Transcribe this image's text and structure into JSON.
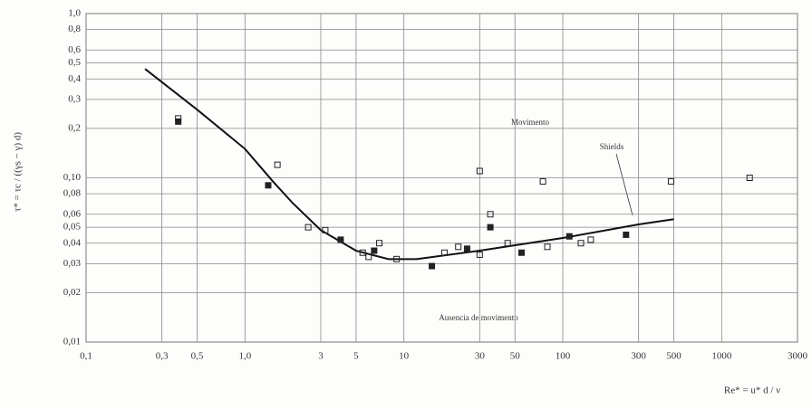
{
  "chart_data": {
    "type": "line",
    "y_label": "τ* = τc / ((γs − γ) d)",
    "x_label": "Re* = u* d / ν",
    "annotations": [
      "Movimento",
      "Ausencia de movimento",
      "Shields"
    ],
    "log_x": true,
    "log_y": true,
    "grid": true,
    "xlim": [
      0.1,
      3000
    ],
    "ylim": [
      0.01,
      1.0
    ],
    "xticks": [
      {
        "value": 0.1,
        "label": "0,1"
      },
      {
        "value": 0.3,
        "label": "0,3"
      },
      {
        "value": 0.5,
        "label": "0,5"
      },
      {
        "value": 1.0,
        "label": "1,0"
      },
      3,
      5,
      10,
      30,
      50,
      100,
      300,
      500,
      1000,
      3000
    ],
    "yticks": [
      {
        "value": 1.0,
        "label": "1,0"
      },
      {
        "value": 0.8,
        "label": "0,8"
      },
      {
        "value": 0.6,
        "label": "0,6"
      },
      {
        "value": 0.5,
        "label": "0,5"
      },
      {
        "value": 0.4,
        "label": "0,4"
      },
      {
        "value": 0.3,
        "label": "0,3"
      },
      {
        "value": 0.2,
        "label": "0,2"
      },
      {
        "value": 0.1,
        "label": "0,10"
      },
      {
        "value": 0.08,
        "label": "0,08"
      },
      {
        "value": 0.06,
        "label": "0,06"
      },
      {
        "value": 0.05,
        "label": "0,05"
      },
      {
        "value": 0.04,
        "label": "0,04"
      },
      {
        "value": 0.03,
        "label": "0,03"
      },
      {
        "value": 0.02,
        "label": "0,02"
      },
      {
        "value": 0.01,
        "label": "0,01"
      }
    ],
    "color": "#111111",
    "x": [
      0.235,
      0.5,
      1,
      1.5,
      2,
      3,
      5,
      8,
      12,
      30,
      100,
      300,
      500
    ],
    "values": [
      0.46,
      0.26,
      0.15,
      0.095,
      0.07,
      0.048,
      0.036,
      0.032,
      0.032,
      0.036,
      0.043,
      0.052,
      0.056
    ],
    "markers": {
      "color": "#222222",
      "x": [
        0.38,
        0.38,
        1.6,
        1.4,
        2.5,
        3.2,
        4,
        5.5,
        6,
        6.5,
        7,
        9,
        15,
        18,
        22,
        25,
        30,
        30,
        35,
        35,
        45,
        55,
        75,
        80,
        110,
        130,
        150,
        250,
        480,
        1500
      ],
      "values": [
        0.22,
        0.23,
        0.12,
        0.09,
        0.05,
        0.048,
        0.042,
        0.035,
        0.033,
        0.036,
        0.04,
        0.032,
        0.029,
        0.035,
        0.038,
        0.037,
        0.034,
        0.11,
        0.05,
        0.06,
        0.04,
        0.035,
        0.095,
        0.038,
        0.044,
        0.04,
        0.042,
        0.045,
        0.095,
        0.1
      ]
    }
  }
}
